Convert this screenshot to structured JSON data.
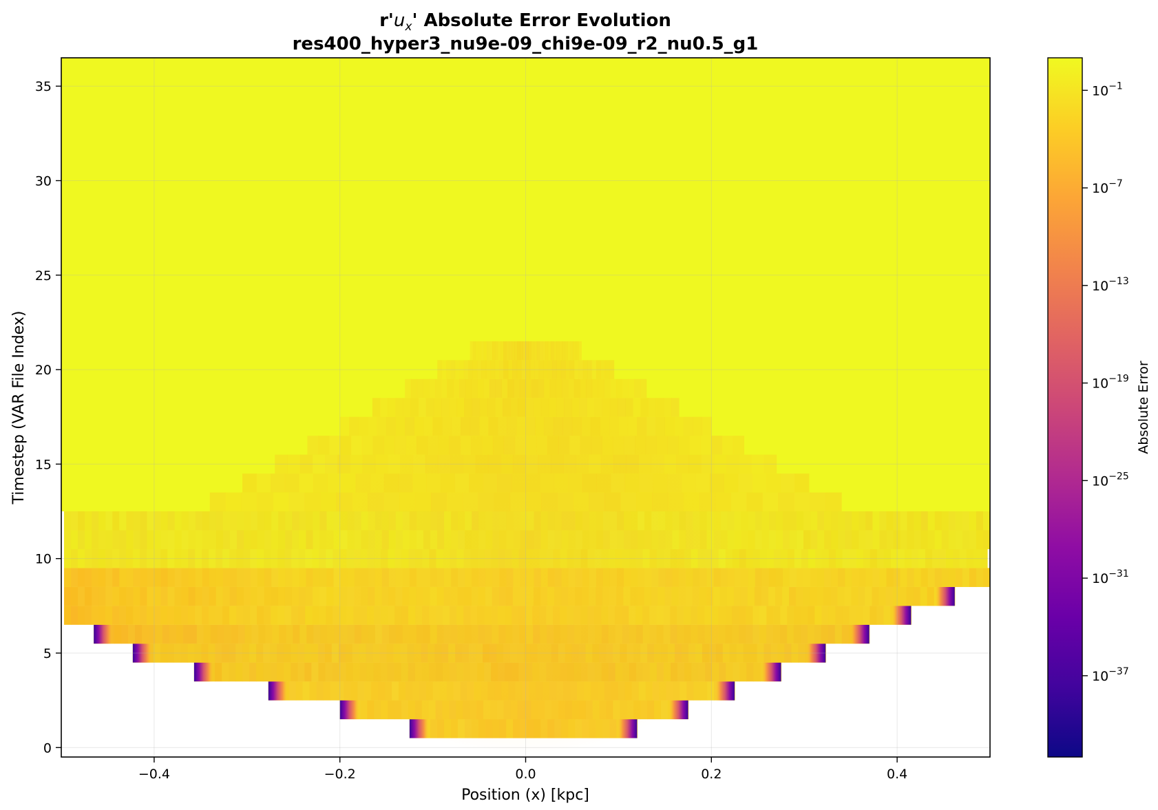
{
  "chart_data": {
    "type": "heatmap",
    "title_prefix": "r'",
    "title_symbol": "u",
    "title_subscript": "x",
    "title_suffix": "' Absolute Error Evolution",
    "subtitle": "res400_hyper3_nu9e-09_chi9e-09_r2_nu0.5_g1",
    "xlabel": "Position (x) [kpc]",
    "ylabel": "Timestep (VAR File Index)",
    "colorbar_label": "Absolute Error",
    "colormap": "plasma",
    "colorbar_scale": "log",
    "colorbar_range": [
      1e-42,
      10
    ],
    "xlim": [
      -0.5,
      0.5
    ],
    "ylim": [
      -0.5,
      36.5
    ],
    "x_ticks": [
      {
        "value": -0.4,
        "label": "−0.4"
      },
      {
        "value": -0.2,
        "label": "−0.2"
      },
      {
        "value": 0.0,
        "label": "0.0"
      },
      {
        "value": 0.2,
        "label": "0.2"
      },
      {
        "value": 0.4,
        "label": "0.4"
      }
    ],
    "y_ticks": [
      {
        "value": 0,
        "label": "0"
      },
      {
        "value": 5,
        "label": "5"
      },
      {
        "value": 10,
        "label": "10"
      },
      {
        "value": 15,
        "label": "15"
      },
      {
        "value": 20,
        "label": "20"
      },
      {
        "value": 25,
        "label": "25"
      },
      {
        "value": 30,
        "label": "30"
      },
      {
        "value": 35,
        "label": "35"
      }
    ],
    "colorbar_ticks": [
      {
        "exp": -1,
        "label": "10",
        "sup": "−1"
      },
      {
        "exp": -7,
        "label": "10",
        "sup": "−7"
      },
      {
        "exp": -13,
        "label": "10",
        "sup": "−13"
      },
      {
        "exp": -19,
        "label": "10",
        "sup": "−19"
      },
      {
        "exp": -25,
        "label": "10",
        "sup": "−25"
      },
      {
        "exp": -31,
        "label": "10",
        "sup": "−31"
      },
      {
        "exp": -37,
        "label": "10",
        "sup": "−37"
      }
    ],
    "grid": true,
    "front_extent_kpc": [
      {
        "timestep": 1,
        "left": -0.125,
        "right": 0.12
      },
      {
        "timestep": 2,
        "left": -0.2,
        "right": 0.175
      },
      {
        "timestep": 3,
        "left": -0.277,
        "right": 0.225
      },
      {
        "timestep": 4,
        "left": -0.357,
        "right": 0.275
      },
      {
        "timestep": 5,
        "left": -0.423,
        "right": 0.323
      },
      {
        "timestep": 6,
        "left": -0.465,
        "right": 0.37
      },
      {
        "timestep": 7,
        "left": -0.497,
        "right": 0.415
      },
      {
        "timestep": 8,
        "left": -0.497,
        "right": 0.462
      },
      {
        "timestep": 9,
        "left": -0.497,
        "right": 0.5
      },
      {
        "timestep": 10,
        "left": -0.497,
        "right": 0.497
      },
      {
        "timestep": 11,
        "left": -0.497,
        "right": 0.5
      },
      {
        "timestep": 12,
        "left": -0.497,
        "right": 0.5
      }
    ]
  }
}
